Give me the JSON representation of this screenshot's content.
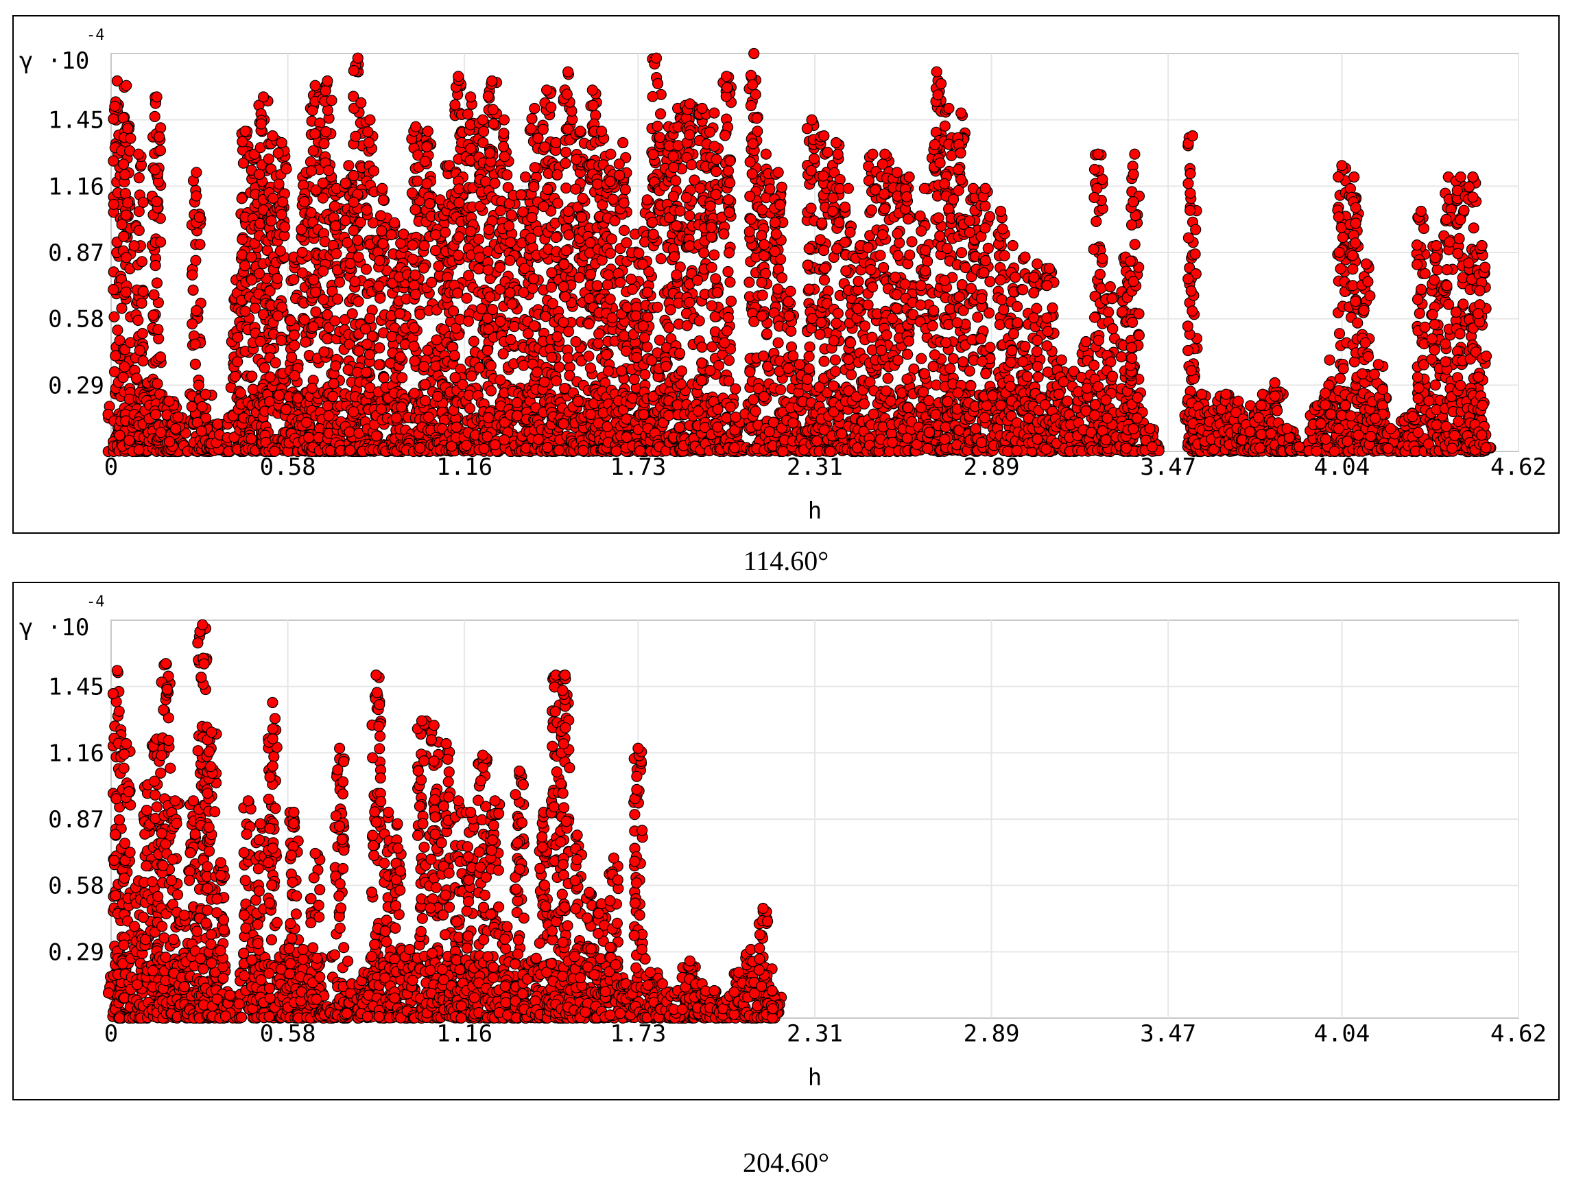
{
  "chart_data": [
    {
      "type": "scatter",
      "caption": "114.60°",
      "xlabel": "h",
      "ylabel": "γ ·10",
      "ylabel_exponent": "-4",
      "x_ticks": [
        "0",
        "0.58",
        "1.16",
        "1.73",
        "2.31",
        "2.89",
        "3.47",
        "4.04",
        "4.62"
      ],
      "y_ticks": [
        "0.29",
        "0.58",
        "0.87",
        "1.16",
        "1.45"
      ],
      "xlim": [
        0,
        4.62
      ],
      "ylim": [
        0,
        1.74
      ],
      "grid": true,
      "marker_color": "#ff0000",
      "marker_edge_color": "#000000",
      "series": [
        {
          "columns": [
            [
              0.02,
              1.62
            ],
            [
              0.05,
              1.6
            ],
            [
              0.09,
              1.3
            ],
            [
              0.12,
              0.3
            ],
            [
              0.15,
              1.55
            ],
            [
              0.19,
              0.22
            ],
            [
              0.22,
              0.15
            ],
            [
              0.28,
              1.22
            ],
            [
              0.31,
              0.25
            ],
            [
              0.35,
              0.12
            ],
            [
              0.41,
              0.75
            ],
            [
              0.44,
              1.4
            ],
            [
              0.47,
              1.3
            ],
            [
              0.5,
              1.55
            ],
            [
              0.53,
              1.38
            ],
            [
              0.56,
              1.35
            ],
            [
              0.6,
              0.85
            ],
            [
              0.64,
              1.22
            ],
            [
              0.67,
              1.6
            ],
            [
              0.71,
              1.62
            ],
            [
              0.74,
              1.15
            ],
            [
              0.78,
              1.25
            ],
            [
              0.81,
              1.72
            ],
            [
              0.85,
              1.45
            ],
            [
              0.89,
              1.15
            ],
            [
              0.93,
              1.0
            ],
            [
              0.96,
              0.95
            ],
            [
              1.0,
              1.42
            ],
            [
              1.04,
              1.4
            ],
            [
              1.08,
              1.1
            ],
            [
              1.11,
              1.25
            ],
            [
              1.14,
              1.64
            ],
            [
              1.18,
              1.55
            ],
            [
              1.22,
              1.45
            ],
            [
              1.25,
              1.62
            ],
            [
              1.29,
              1.45
            ],
            [
              1.32,
              1.12
            ],
            [
              1.36,
              1.2
            ],
            [
              1.39,
              1.5
            ],
            [
              1.43,
              1.58
            ],
            [
              1.46,
              1.35
            ],
            [
              1.5,
              1.66
            ],
            [
              1.54,
              1.4
            ],
            [
              1.58,
              1.58
            ],
            [
              1.61,
              1.4
            ],
            [
              1.64,
              1.3
            ],
            [
              1.68,
              1.35
            ],
            [
              1.72,
              0.95
            ],
            [
              1.76,
              1.1
            ],
            [
              1.79,
              1.72
            ],
            [
              1.83,
              1.42
            ],
            [
              1.86,
              1.5
            ],
            [
              1.9,
              1.52
            ],
            [
              1.94,
              1.5
            ],
            [
              1.98,
              1.48
            ],
            [
              2.02,
              1.64
            ],
            [
              2.05,
              0.15
            ],
            [
              2.11,
              1.74
            ],
            [
              2.15,
              1.3
            ],
            [
              2.19,
              1.22
            ],
            [
              2.23,
              0.7
            ],
            [
              2.26,
              0.38
            ],
            [
              2.3,
              1.45
            ],
            [
              2.34,
              1.38
            ],
            [
              2.38,
              1.35
            ],
            [
              2.42,
              1.15
            ],
            [
              2.46,
              0.9
            ],
            [
              2.5,
              1.3
            ],
            [
              2.54,
              1.3
            ],
            [
              2.58,
              1.22
            ],
            [
              2.62,
              1.2
            ],
            [
              2.67,
              1.15
            ],
            [
              2.71,
              1.66
            ],
            [
              2.75,
              1.5
            ],
            [
              2.79,
              1.48
            ],
            [
              2.83,
              1.15
            ],
            [
              2.87,
              1.15
            ],
            [
              2.92,
              1.05
            ],
            [
              2.96,
              0.9
            ],
            [
              3.0,
              0.85
            ],
            [
              3.04,
              0.82
            ],
            [
              3.08,
              0.8
            ],
            [
              3.12,
              0.4
            ],
            [
              3.16,
              0.35
            ],
            [
              3.2,
              0.48
            ],
            [
              3.24,
              1.3
            ],
            [
              3.28,
              0.72
            ],
            [
              3.33,
              0.85
            ],
            [
              3.36,
              1.3
            ],
            [
              3.41,
              0.1
            ],
            [
              3.55,
              1.38
            ],
            [
              3.58,
              0.25
            ],
            [
              3.62,
              0.18
            ],
            [
              3.66,
              0.25
            ],
            [
              3.7,
              0.22
            ],
            [
              3.74,
              0.2
            ],
            [
              3.78,
              0.25
            ],
            [
              3.82,
              0.3
            ],
            [
              3.86,
              0.1
            ],
            [
              3.9,
              0.02
            ],
            [
              3.96,
              0.2
            ],
            [
              4.0,
              0.4
            ],
            [
              4.04,
              1.25
            ],
            [
              4.08,
              1.2
            ],
            [
              4.12,
              0.82
            ],
            [
              4.16,
              0.38
            ],
            [
              4.2,
              0.1
            ],
            [
              4.26,
              0.15
            ],
            [
              4.3,
              1.05
            ],
            [
              4.35,
              0.9
            ],
            [
              4.39,
              1.2
            ],
            [
              4.43,
              1.2
            ],
            [
              4.47,
              1.2
            ],
            [
              4.5,
              0.9
            ]
          ]
        }
      ]
    },
    {
      "type": "scatter",
      "caption": "204.60°",
      "xlabel": "h",
      "ylabel": "γ ·10",
      "ylabel_exponent": "-4",
      "x_ticks": [
        "0",
        "0.58",
        "1.16",
        "1.73",
        "2.31",
        "2.89",
        "3.47",
        "4.04",
        "4.62"
      ],
      "y_ticks": [
        "0.29",
        "0.58",
        "0.87",
        "1.16",
        "1.45"
      ],
      "xlim": [
        0,
        4.62
      ],
      "ylim": [
        0,
        1.74
      ],
      "grid": true,
      "marker_color": "#ff0000",
      "marker_edge_color": "#000000",
      "series": [
        {
          "columns": [
            [
              0.02,
              1.52
            ],
            [
              0.05,
              1.2
            ],
            [
              0.09,
              0.6
            ],
            [
              0.12,
              1.02
            ],
            [
              0.15,
              1.22
            ],
            [
              0.18,
              1.55
            ],
            [
              0.21,
              0.95
            ],
            [
              0.24,
              0.45
            ],
            [
              0.27,
              0.95
            ],
            [
              0.3,
              1.72
            ],
            [
              0.33,
              1.25
            ],
            [
              0.36,
              0.68
            ],
            [
              0.39,
              0.1
            ],
            [
              0.45,
              0.95
            ],
            [
              0.49,
              0.85
            ],
            [
              0.53,
              1.38
            ],
            [
              0.57,
              0.3
            ],
            [
              0.6,
              0.9
            ],
            [
              0.63,
              0.3
            ],
            [
              0.67,
              0.72
            ],
            [
              0.71,
              0.05
            ],
            [
              0.75,
              1.18
            ],
            [
              0.79,
              0.15
            ],
            [
              0.83,
              0.2
            ],
            [
              0.87,
              1.5
            ],
            [
              0.91,
              0.9
            ],
            [
              0.94,
              0.85
            ],
            [
              0.98,
              0.3
            ],
            [
              1.02,
              1.3
            ],
            [
              1.06,
              1.28
            ],
            [
              1.1,
              1.2
            ],
            [
              1.14,
              0.95
            ],
            [
              1.18,
              0.9
            ],
            [
              1.22,
              1.15
            ],
            [
              1.26,
              0.95
            ],
            [
              1.3,
              0.4
            ],
            [
              1.34,
              1.08
            ],
            [
              1.38,
              0.25
            ],
            [
              1.42,
              0.9
            ],
            [
              1.46,
              1.5
            ],
            [
              1.49,
              1.5
            ],
            [
              1.53,
              0.8
            ],
            [
              1.57,
              0.55
            ],
            [
              1.61,
              0.5
            ],
            [
              1.65,
              0.7
            ],
            [
              1.69,
              0.15
            ],
            [
              1.73,
              1.18
            ],
            [
              1.77,
              0.2
            ],
            [
              1.81,
              0.15
            ],
            [
              1.86,
              0.12
            ],
            [
              1.9,
              0.25
            ],
            [
              1.94,
              0.15
            ],
            [
              1.98,
              0.12
            ],
            [
              2.02,
              0.08
            ],
            [
              2.06,
              0.2
            ],
            [
              2.1,
              0.3
            ],
            [
              2.14,
              0.48
            ],
            [
              2.17,
              0.12
            ]
          ]
        }
      ]
    }
  ]
}
